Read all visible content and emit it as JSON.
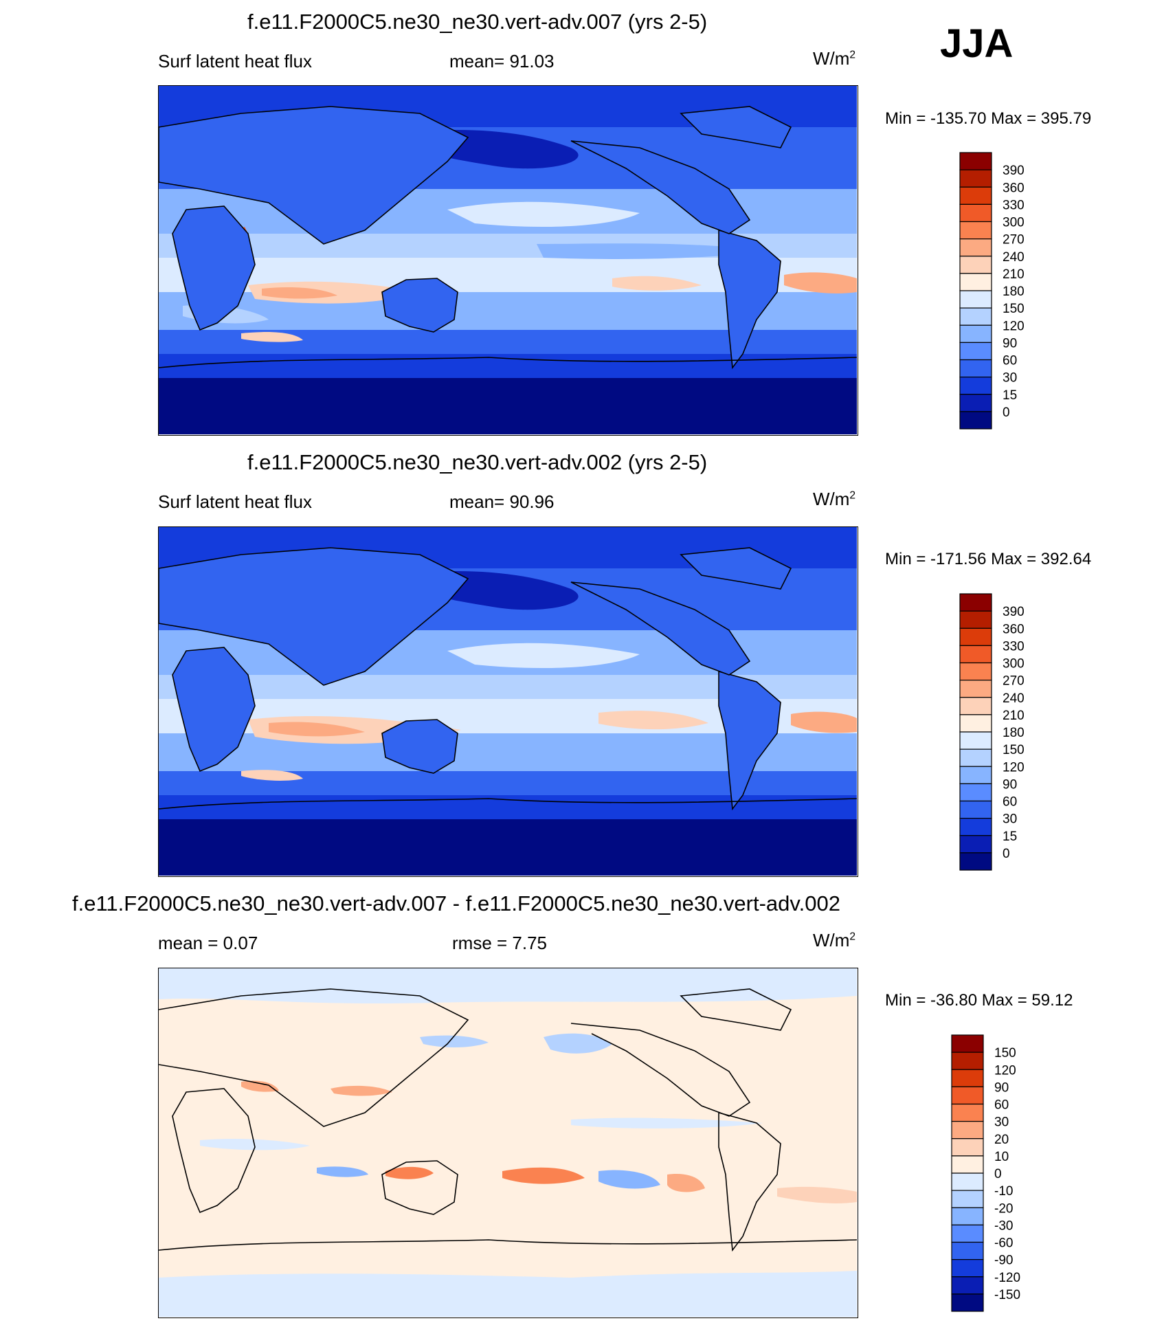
{
  "season_label": "JJA",
  "panels": [
    {
      "title": "f.e11.F2000C5.ne30_ne30.vert-adv.007 (yrs 2-5)",
      "left_label": "Surf latent heat flux",
      "center_label": "mean=  91.03",
      "unit_base": "W/m",
      "unit_exp": "2",
      "minmax": "Min = -135.70 Max = 395.79",
      "colorbar_ticks": [
        "390",
        "360",
        "330",
        "300",
        "270",
        "240",
        "210",
        "180",
        "150",
        "120",
        "90",
        "60",
        "30",
        "15",
        "0"
      ],
      "colorbar_colors": [
        "#8b0000",
        "#b41e00",
        "#dc3c0a",
        "#f05a28",
        "#fa8250",
        "#fcaa82",
        "#fdd2b9",
        "#fff0e1",
        "#dcebff",
        "#b4d2ff",
        "#87b4ff",
        "#5a8cff",
        "#3264f0",
        "#143cdc",
        "#0a1eb4",
        "#000a82"
      ]
    },
    {
      "title": "f.e11.F2000C5.ne30_ne30.vert-adv.002 (yrs 2-5)",
      "left_label": "Surf latent heat flux",
      "center_label": "mean=  90.96",
      "unit_base": "W/m",
      "unit_exp": "2",
      "minmax": "Min = -171.56 Max = 392.64",
      "colorbar_ticks": [
        "390",
        "360",
        "330",
        "300",
        "270",
        "240",
        "210",
        "180",
        "150",
        "120",
        "90",
        "60",
        "30",
        "15",
        "0"
      ],
      "colorbar_colors": [
        "#8b0000",
        "#b41e00",
        "#dc3c0a",
        "#f05a28",
        "#fa8250",
        "#fcaa82",
        "#fdd2b9",
        "#fff0e1",
        "#dcebff",
        "#b4d2ff",
        "#87b4ff",
        "#5a8cff",
        "#3264f0",
        "#143cdc",
        "#0a1eb4",
        "#000a82"
      ]
    },
    {
      "title": "f.e11.F2000C5.ne30_ne30.vert-adv.007 - f.e11.F2000C5.ne30_ne30.vert-adv.002",
      "left_label": "mean =   0.07",
      "center_label": "rmse =   7.75",
      "unit_base": "W/m",
      "unit_exp": "2",
      "minmax": "Min = -36.80 Max =  59.12",
      "colorbar_ticks": [
        "150",
        "120",
        "90",
        "60",
        "30",
        "20",
        "10",
        "0",
        "-10",
        "-20",
        "-30",
        "-60",
        "-90",
        "-120",
        "-150"
      ],
      "colorbar_colors": [
        "#8b0000",
        "#b41e00",
        "#dc3c0a",
        "#f05a28",
        "#fa8250",
        "#fcaa82",
        "#fdd2b9",
        "#fff0e1",
        "#dcebff",
        "#b4d2ff",
        "#87b4ff",
        "#5a8cff",
        "#3264f0",
        "#143cdc",
        "#0a1eb4",
        "#000a82"
      ]
    }
  ],
  "chart_data": [
    {
      "type": "heatmap",
      "title": "f.e11.F2000C5.ne30_ne30.vert-adv.007 (yrs 2-5)",
      "variable": "Surf latent heat flux",
      "season": "JJA",
      "units": "W/m2",
      "mean": 91.03,
      "min": -135.7,
      "max": 395.79,
      "contour_levels": [
        0,
        15,
        30,
        60,
        90,
        120,
        150,
        180,
        210,
        240,
        270,
        300,
        330,
        360,
        390
      ]
    },
    {
      "type": "heatmap",
      "title": "f.e11.F2000C5.ne30_ne30.vert-adv.002 (yrs 2-5)",
      "variable": "Surf latent heat flux",
      "season": "JJA",
      "units": "W/m2",
      "mean": 90.96,
      "min": -171.56,
      "max": 392.64,
      "contour_levels": [
        0,
        15,
        30,
        60,
        90,
        120,
        150,
        180,
        210,
        240,
        270,
        300,
        330,
        360,
        390
      ]
    },
    {
      "type": "heatmap",
      "title": "f.e11.F2000C5.ne30_ne30.vert-adv.007 - f.e11.F2000C5.ne30_ne30.vert-adv.002",
      "season": "JJA",
      "units": "W/m2",
      "mean": 0.07,
      "rmse": 7.75,
      "min": -36.8,
      "max": 59.12,
      "contour_levels": [
        -150,
        -120,
        -90,
        -60,
        -30,
        -20,
        -10,
        0,
        10,
        20,
        30,
        60,
        90,
        120,
        150
      ]
    }
  ]
}
